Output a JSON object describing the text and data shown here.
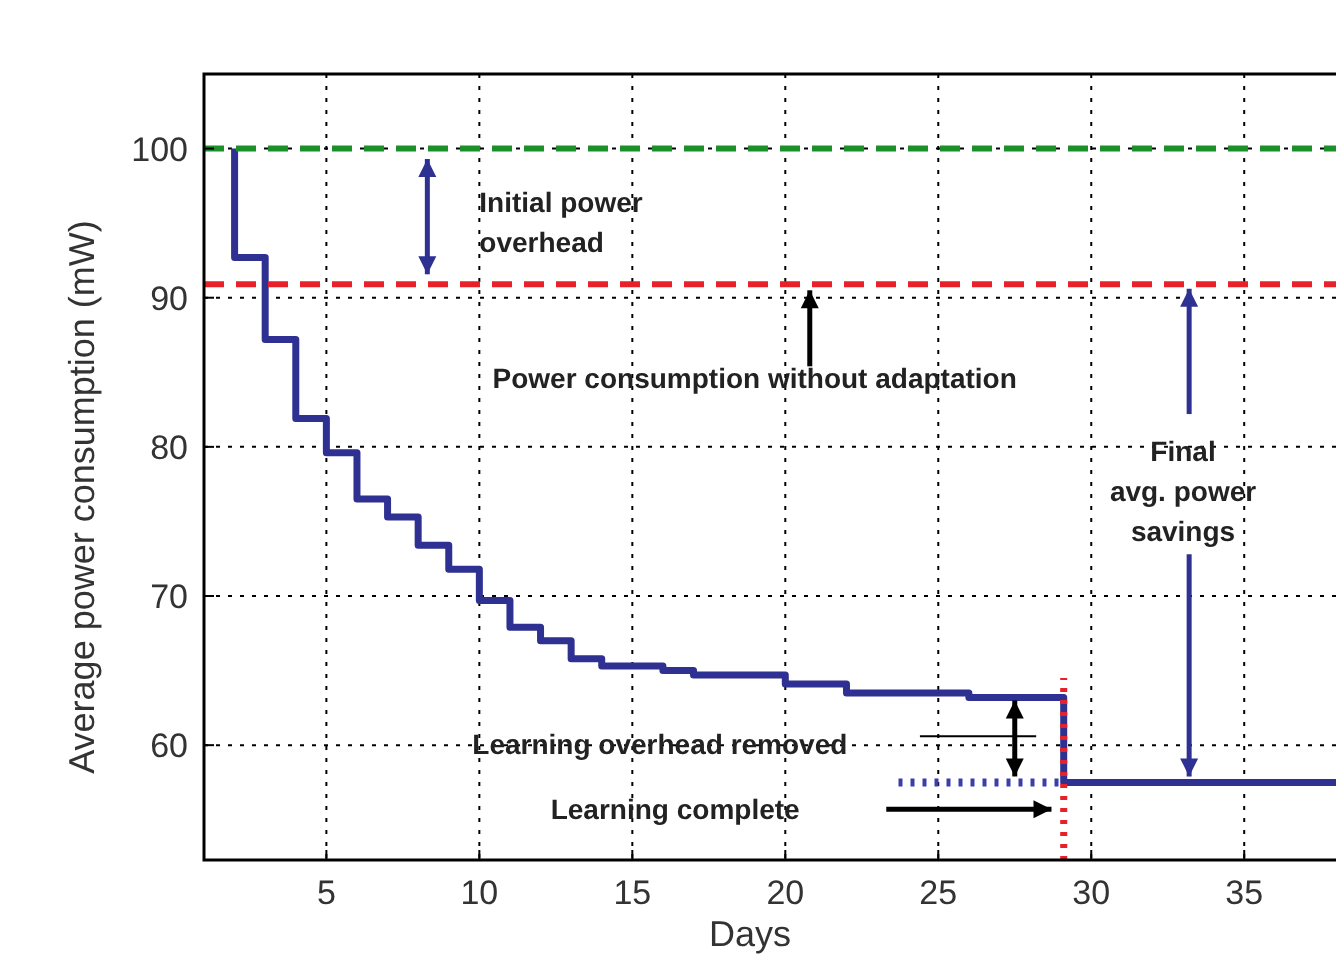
{
  "chart_data": {
    "type": "step",
    "xlabel": "Days",
    "ylabel": "Average power consumption (mW)",
    "xlim": [
      1,
      38
    ],
    "ylim": [
      52.3,
      105
    ],
    "xticks": [
      5,
      10,
      15,
      20,
      25,
      30,
      35
    ],
    "yticks": [
      60,
      70,
      80,
      90,
      100
    ],
    "grid": true,
    "series": [
      {
        "type": "step",
        "color": "#2e3192",
        "line_style": "solid",
        "x": [
          2,
          2,
          3,
          4,
          5,
          6,
          7,
          8,
          9,
          10,
          11,
          12,
          13,
          14,
          16,
          17,
          20,
          22,
          26,
          29.1,
          38
        ],
        "values": [
          100,
          92.7,
          87.2,
          81.9,
          79.6,
          76.5,
          75.3,
          73.4,
          71.8,
          69.7,
          67.9,
          67.0,
          65.8,
          65.3,
          65.0,
          64.7,
          64.1,
          63.5,
          63.2,
          57.5,
          57.5
        ]
      },
      {
        "type": "line",
        "color": "#3a3fa8",
        "line_style": "dotted",
        "x": [
          23.7,
          29.1
        ],
        "values": [
          57.5,
          57.5
        ]
      }
    ],
    "ref_lines": [
      {
        "axis": "y",
        "value": 100,
        "color": "#1a8f2a",
        "line_style": "dashed"
      },
      {
        "axis": "y",
        "value": 90.9,
        "color": "#e8202a",
        "line_style": "dashed"
      },
      {
        "axis": "x",
        "value": 29.1,
        "color": "#e8202a",
        "line_style": "dotted"
      }
    ],
    "annotations": [
      {
        "text": "Initial power\noverhead",
        "x": 8.3,
        "y": 90.9
      },
      {
        "text": "Power consumption without adaptation",
        "x": 20.8,
        "y": 90.9
      },
      {
        "text": "Final\navg. power\nsavings",
        "x": 33.2,
        "y": 57.5
      },
      "Learning overhead removed",
      "Learning complete"
    ]
  }
}
